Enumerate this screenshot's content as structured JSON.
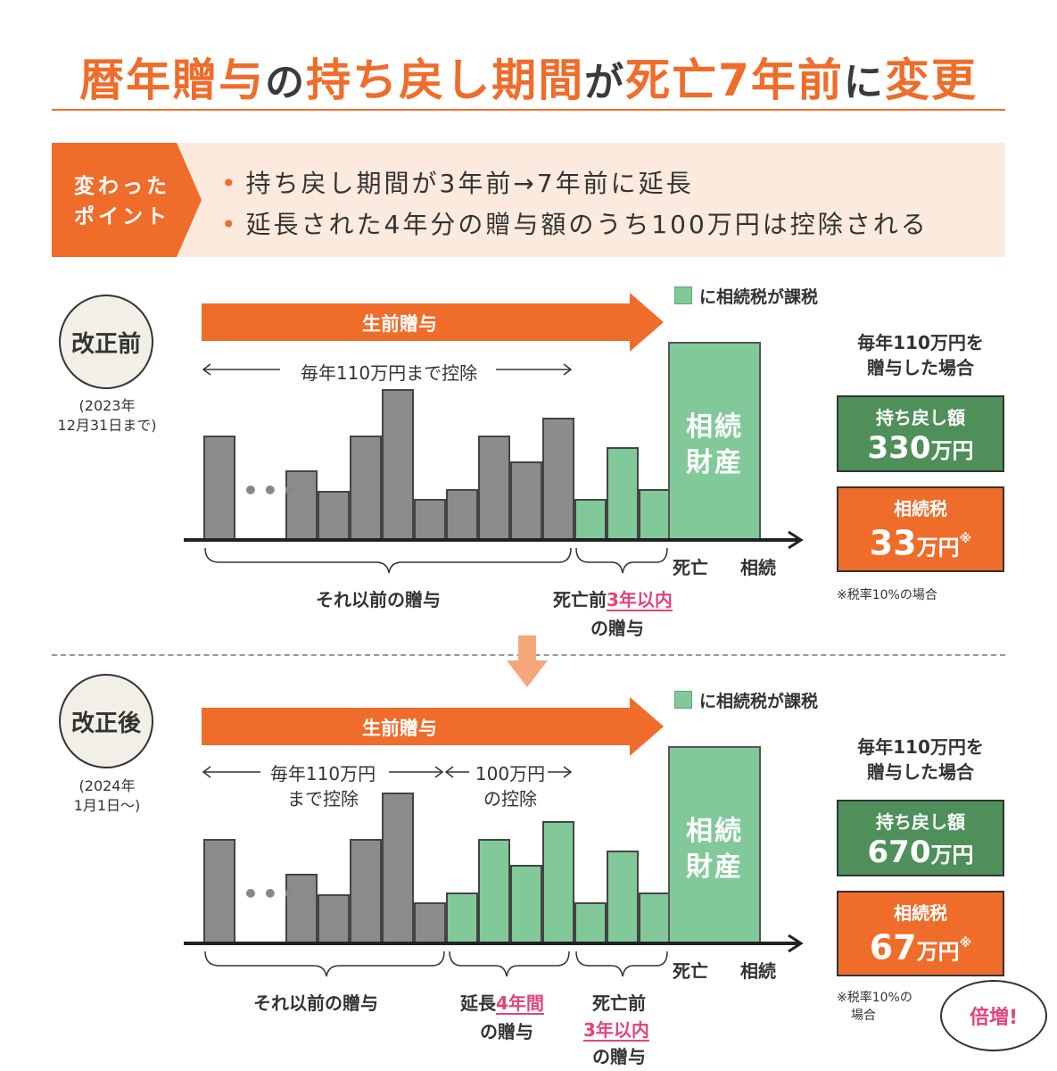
{
  "title": {
    "p1": "暦年贈与",
    "p2": "の",
    "p3": "持ち戻し期間",
    "p4": "が",
    "p5": "死亡7年前",
    "p6": "に",
    "p7": "変更"
  },
  "points": {
    "badge_line1": "変わった",
    "badge_line2": "ポイント",
    "items": [
      "持ち戻し期間が3年前→7年前に延長",
      "延長された4年分の贈与額のうち100万円は控除される"
    ]
  },
  "colors": {
    "accent_orange": "#ef6c2a",
    "inheritance_green": "#82c99a",
    "dark_green": "#4e8f5a",
    "gift_gray": "#8c8c8c",
    "highlight_pink": "#e0457b"
  },
  "before": {
    "badge": "改正前",
    "date_line1": "(2023年",
    "date_line2": "12月31日まで)",
    "legend": "に相続税が課税",
    "arrow_label": "生前贈与",
    "range_label": "毎年110万円まで控除",
    "estate_line1": "相続",
    "estate_line2": "財産",
    "axis_death": "死亡",
    "axis_inherit": "相続",
    "bracket_earlier": "それ以前の贈与",
    "bracket_recent_pre": "死亡前",
    "bracket_recent_hl": "3年以内",
    "bracket_recent_post": "の贈与",
    "side_head_1": "毎年110万円を",
    "side_head_2": "贈与した場合",
    "clawback_label": "持ち戻し額",
    "clawback_value": "330",
    "clawback_unit": "万円",
    "tax_label": "相続税",
    "tax_value": "33",
    "tax_unit": "万円",
    "tax_mark": "※",
    "note": "※税率10%の場合",
    "bars_gray": [
      1.8,
      1.2,
      0.85,
      1.8,
      2.6,
      0.7,
      0.88,
      1.8,
      1.35,
      2.1
    ],
    "bars_green": [
      0.7,
      1.6,
      0.88
    ],
    "estate_height": 3.4
  },
  "after": {
    "badge": "改正後",
    "date_line1": "(2024年",
    "date_line2": "1月1日〜)",
    "legend": "に相続税が課税",
    "arrow_label": "生前贈与",
    "range_left_1": "毎年110万円",
    "range_left_2": "まで控除",
    "range_right_1": "100万円",
    "range_right_2": "の控除",
    "estate_line1": "相続",
    "estate_line2": "財産",
    "axis_death": "死亡",
    "axis_inherit": "相続",
    "bracket_earlier": "それ以前の贈与",
    "bracket_ext_pre": "延長",
    "bracket_ext_hl": "4年間",
    "bracket_ext_post": "の贈与",
    "bracket_recent_pre": "死亡前",
    "bracket_recent_hl": "3年以内",
    "bracket_recent_post": "の贈与",
    "side_head_1": "毎年110万円を",
    "side_head_2": "贈与した場合",
    "clawback_label": "持ち戻し額",
    "clawback_value": "670",
    "clawback_unit": "万円",
    "tax_label": "相続税",
    "tax_value": "67",
    "tax_unit": "万円",
    "tax_mark": "※",
    "note_line1": "※税率10%の",
    "note_line2": "場合",
    "bubble": "倍増!",
    "bars_gray": [
      1.8,
      1.2,
      0.85,
      1.8,
      2.6,
      0.7
    ],
    "bars_green": [
      0.88,
      1.8,
      1.35,
      2.1,
      0.7,
      1.6,
      0.88
    ],
    "estate_height": 3.4
  }
}
